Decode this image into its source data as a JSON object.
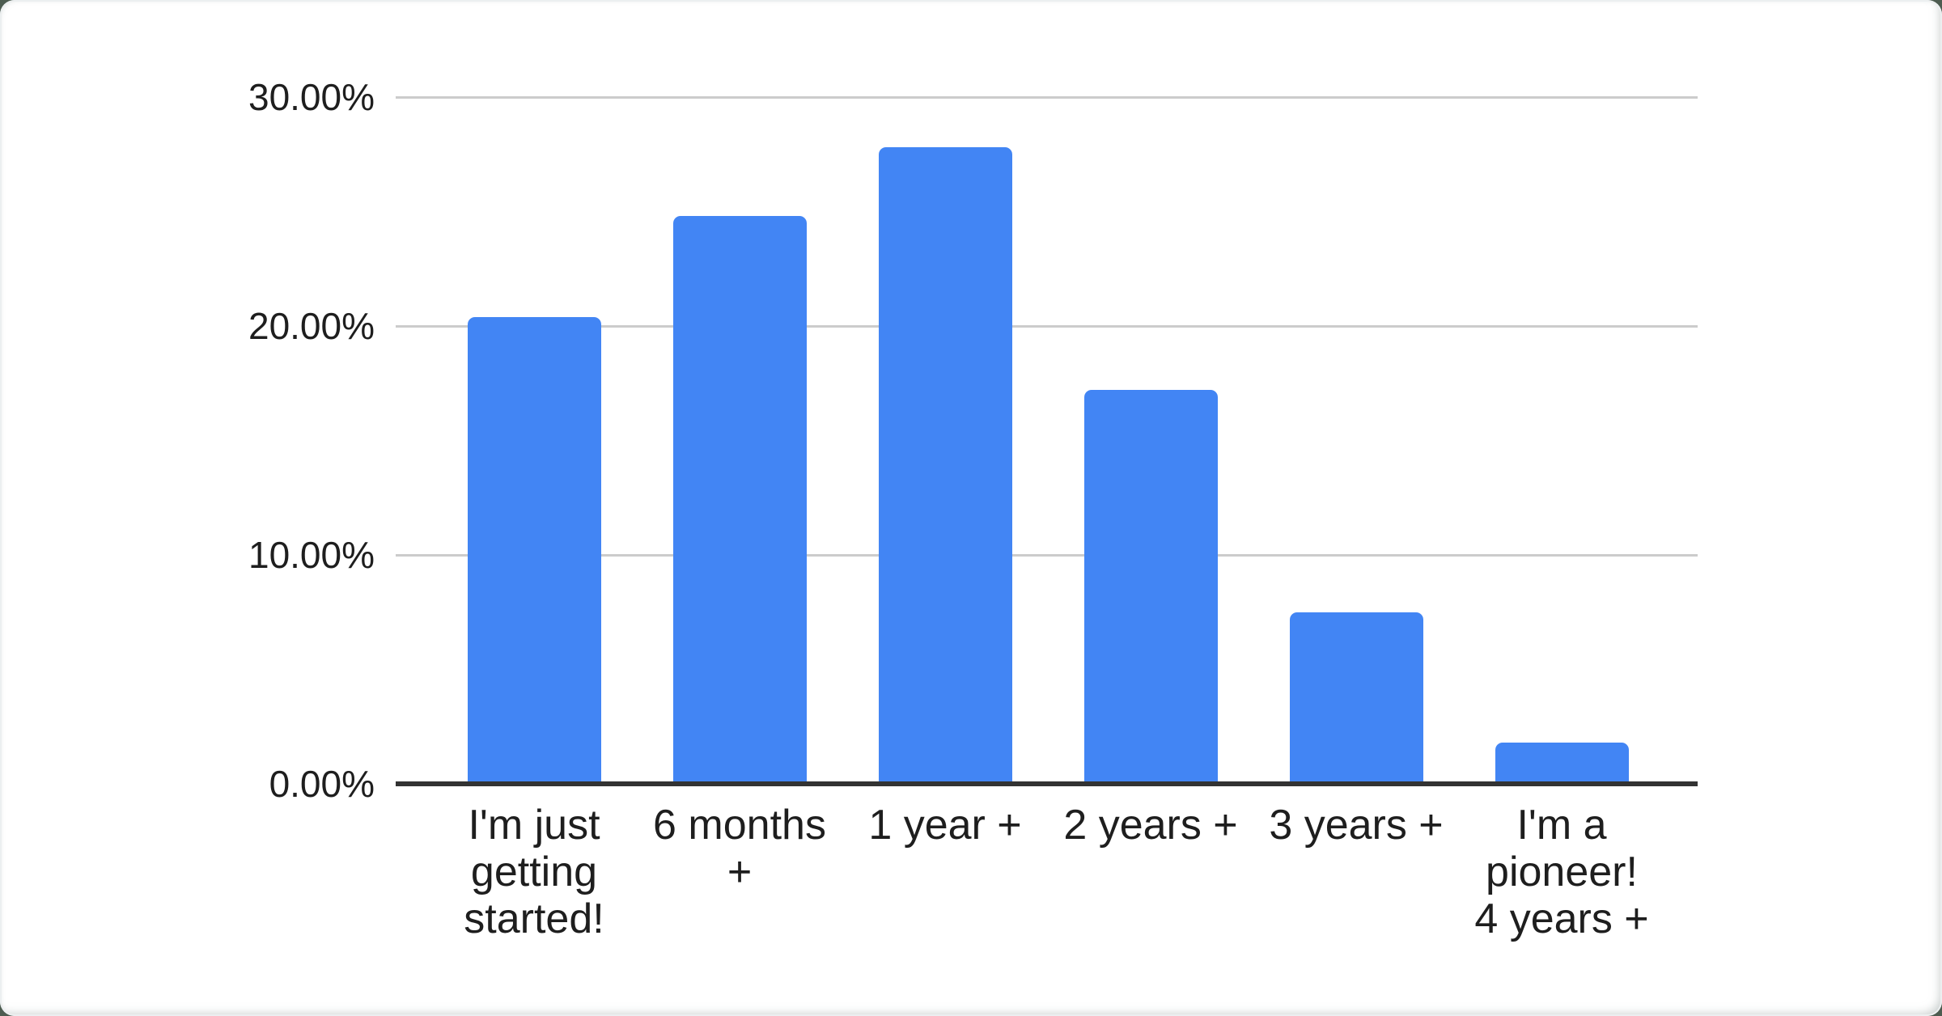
{
  "page": {
    "background_color": "#4d5c50",
    "card_background": "#ffffff"
  },
  "chart_data": {
    "type": "bar",
    "title": "",
    "xlabel": "",
    "ylabel": "",
    "unit": "%",
    "categories": [
      "I'm just getting started!",
      "6 months +",
      "1 year +",
      "2 years +",
      "3 years +",
      "I'm a pioneer! 4 years +"
    ],
    "category_display_lines": [
      [
        "I'm just",
        "getting",
        "started!"
      ],
      [
        "6 months",
        "+"
      ],
      [
        "1 year +"
      ],
      [
        "2 years +"
      ],
      [
        "3 years +"
      ],
      [
        "I'm a",
        "pioneer!",
        "4 years +"
      ]
    ],
    "values": [
      20.4,
      24.8,
      27.8,
      17.2,
      7.5,
      1.8
    ],
    "ylim": [
      0,
      30
    ],
    "y_ticks": [
      {
        "label": "0.00%",
        "value": 0
      },
      {
        "label": "10.00%",
        "value": 10
      },
      {
        "label": "20.00%",
        "value": 20
      },
      {
        "label": "30.00%",
        "value": 30
      }
    ],
    "grid": true,
    "legend_position": "none",
    "colors": {
      "bar": "#4285f4",
      "gridline": "#cccccc",
      "axis_line": "#333333",
      "label_text": "#1e1e1e"
    }
  }
}
